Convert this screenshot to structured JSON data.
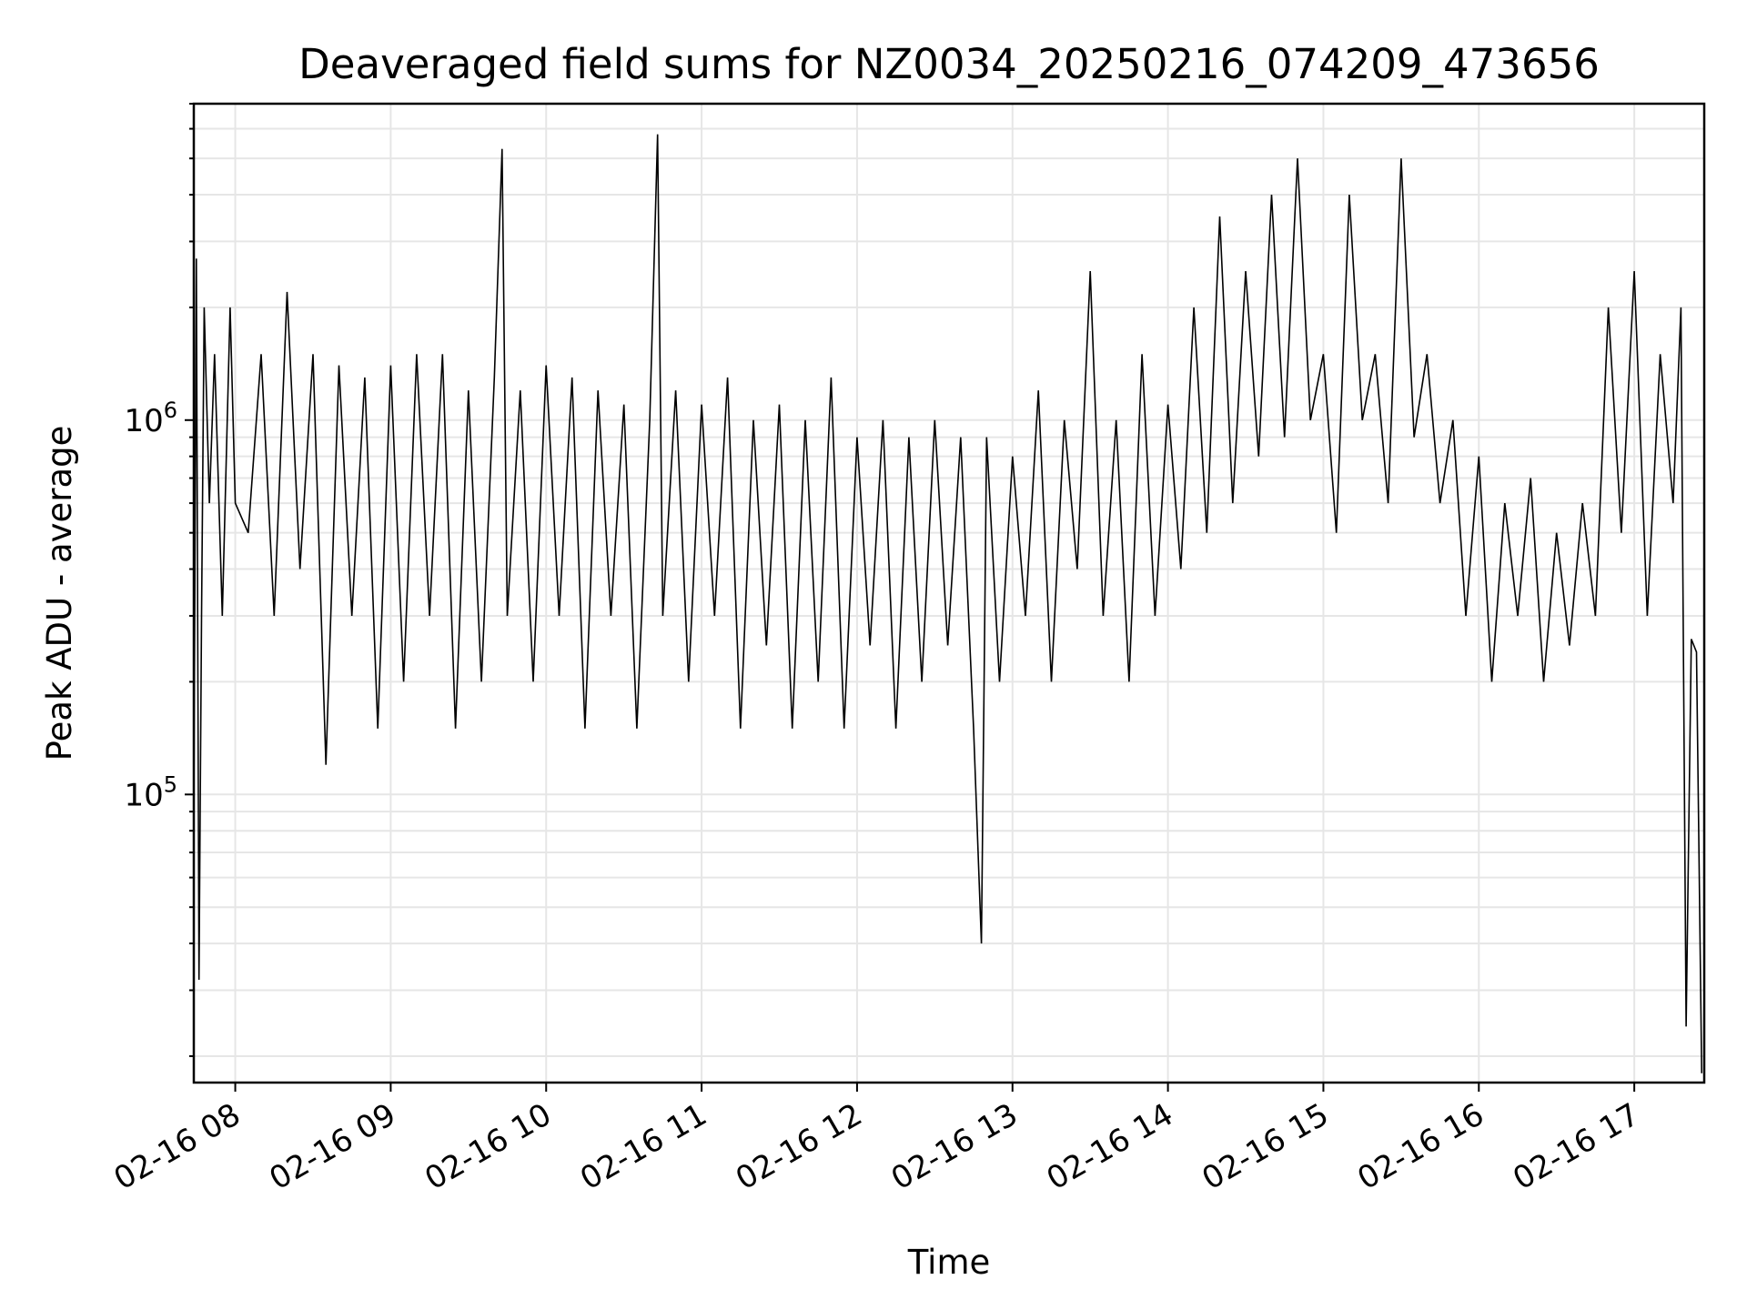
{
  "chart_data": {
    "type": "line",
    "title": "Deaveraged field sums for NZ0034_20250216_074209_473656",
    "xlabel": "Time",
    "ylabel": "Peak ADU - average",
    "yscale": "log",
    "ylim": [
      17000,
      7000000
    ],
    "xlim": [
      "02-16 07:44",
      "02-16 17:27"
    ],
    "grid": true,
    "line_color": "#000000",
    "x_ticks": [
      "02-16 08",
      "02-16 09",
      "02-16 10",
      "02-16 11",
      "02-16 12",
      "02-16 13",
      "02-16 14",
      "02-16 15",
      "02-16 16",
      "02-16 17"
    ],
    "y_ticks": [
      {
        "value": 100000,
        "base": "10",
        "exp": "5"
      },
      {
        "value": 1000000,
        "base": "10",
        "exp": "6"
      }
    ],
    "series": [
      {
        "x": [
          "02-16 07:44",
          "02-16 07:45",
          "02-16 07:46",
          "02-16 07:47",
          "02-16 07:48",
          "02-16 07:50",
          "02-16 07:52",
          "02-16 07:55",
          "02-16 07:58",
          "02-16 08:00",
          "02-16 08:05",
          "02-16 08:10",
          "02-16 08:15",
          "02-16 08:20",
          "02-16 08:25",
          "02-16 08:30",
          "02-16 08:35",
          "02-16 08:40",
          "02-16 08:45",
          "02-16 08:50",
          "02-16 08:55",
          "02-16 09:00",
          "02-16 09:05",
          "02-16 09:10",
          "02-16 09:15",
          "02-16 09:20",
          "02-16 09:25",
          "02-16 09:30",
          "02-16 09:35",
          "02-16 09:40",
          "02-16 09:43",
          "02-16 09:45",
          "02-16 09:50",
          "02-16 09:55",
          "02-16 10:00",
          "02-16 10:05",
          "02-16 10:10",
          "02-16 10:15",
          "02-16 10:20",
          "02-16 10:25",
          "02-16 10:30",
          "02-16 10:35",
          "02-16 10:40",
          "02-16 10:43",
          "02-16 10:45",
          "02-16 10:50",
          "02-16 10:55",
          "02-16 11:00",
          "02-16 11:05",
          "02-16 11:10",
          "02-16 11:15",
          "02-16 11:20",
          "02-16 11:25",
          "02-16 11:30",
          "02-16 11:35",
          "02-16 11:40",
          "02-16 11:45",
          "02-16 11:50",
          "02-16 11:55",
          "02-16 12:00",
          "02-16 12:05",
          "02-16 12:10",
          "02-16 12:15",
          "02-16 12:20",
          "02-16 12:25",
          "02-16 12:30",
          "02-16 12:35",
          "02-16 12:40",
          "02-16 12:45",
          "02-16 12:48",
          "02-16 12:50",
          "02-16 12:55",
          "02-16 13:00",
          "02-16 13:05",
          "02-16 13:10",
          "02-16 13:15",
          "02-16 13:20",
          "02-16 13:25",
          "02-16 13:30",
          "02-16 13:35",
          "02-16 13:40",
          "02-16 13:45",
          "02-16 13:50",
          "02-16 13:55",
          "02-16 14:00",
          "02-16 14:05",
          "02-16 14:10",
          "02-16 14:15",
          "02-16 14:20",
          "02-16 14:25",
          "02-16 14:30",
          "02-16 14:35",
          "02-16 14:40",
          "02-16 14:45",
          "02-16 14:50",
          "02-16 14:55",
          "02-16 15:00",
          "02-16 15:05",
          "02-16 15:10",
          "02-16 15:15",
          "02-16 15:20",
          "02-16 15:25",
          "02-16 15:30",
          "02-16 15:35",
          "02-16 15:40",
          "02-16 15:45",
          "02-16 15:50",
          "02-16 15:55",
          "02-16 16:00",
          "02-16 16:05",
          "02-16 16:10",
          "02-16 16:15",
          "02-16 16:20",
          "02-16 16:25",
          "02-16 16:30",
          "02-16 16:35",
          "02-16 16:40",
          "02-16 16:45",
          "02-16 16:50",
          "02-16 16:55",
          "02-16 17:00",
          "02-16 17:05",
          "02-16 17:10",
          "02-16 17:15",
          "02-16 17:18",
          "02-16 17:20",
          "02-16 17:22",
          "02-16 17:24",
          "02-16 17:26"
        ],
        "y": [
          90000,
          2700000,
          32000,
          300000,
          2000000,
          600000,
          1500000,
          300000,
          2000000,
          600000,
          500000,
          1500000,
          300000,
          2200000,
          400000,
          1500000,
          120000,
          1400000,
          300000,
          1300000,
          150000,
          1400000,
          200000,
          1500000,
          300000,
          1500000,
          150000,
          1200000,
          200000,
          1300000,
          5300000,
          300000,
          1200000,
          200000,
          1400000,
          300000,
          1300000,
          150000,
          1200000,
          300000,
          1100000,
          150000,
          1000000,
          5800000,
          300000,
          1200000,
          200000,
          1100000,
          300000,
          1300000,
          150000,
          1000000,
          250000,
          1100000,
          150000,
          1000000,
          200000,
          1300000,
          150000,
          900000,
          250000,
          1000000,
          150000,
          900000,
          200000,
          1000000,
          250000,
          900000,
          150000,
          40000,
          900000,
          200000,
          800000,
          300000,
          1200000,
          200000,
          1000000,
          400000,
          2500000,
          300000,
          1000000,
          200000,
          1500000,
          300000,
          1100000,
          400000,
          2000000,
          500000,
          3500000,
          600000,
          2500000,
          800000,
          4000000,
          900000,
          5000000,
          1000000,
          1500000,
          500000,
          4000000,
          1000000,
          1500000,
          600000,
          5000000,
          900000,
          1500000,
          600000,
          1000000,
          300000,
          800000,
          200000,
          600000,
          300000,
          700000,
          200000,
          500000,
          250000,
          600000,
          300000,
          2000000,
          500000,
          2500000,
          300000,
          1500000,
          600000,
          2000000,
          24000,
          260000,
          240000,
          18000
        ]
      }
    ]
  }
}
